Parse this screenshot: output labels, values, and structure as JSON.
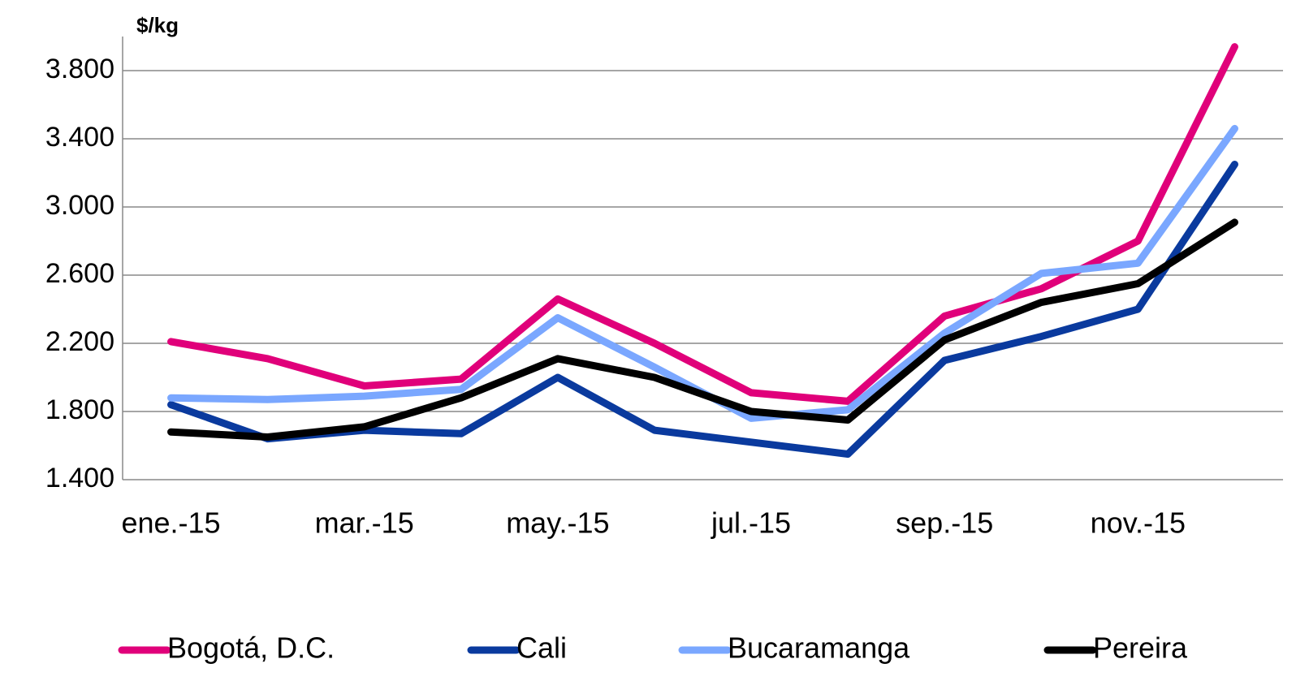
{
  "chart_data": {
    "type": "line",
    "y_label": "$/kg",
    "categories": [
      "ene.-15",
      null,
      "mar.-15",
      null,
      "may.-15",
      null,
      "jul.-15",
      null,
      "sep.-15",
      null,
      "nov.-15",
      null
    ],
    "series": [
      {
        "name": "Bogotá, D.C.",
        "color": "#e0007a",
        "values": [
          2210,
          2110,
          1950,
          1990,
          2460,
          2200,
          1910,
          1860,
          2360,
          2520,
          2800,
          3940
        ]
      },
      {
        "name": "Cali",
        "color": "#0a3a9e",
        "values": [
          1840,
          1640,
          1690,
          1670,
          2000,
          1690,
          1620,
          1550,
          2100,
          2240,
          2400,
          3250
        ]
      },
      {
        "name": "Bucaramanga",
        "color": "#7aa7ff",
        "values": [
          1880,
          1870,
          1890,
          1930,
          2350,
          2060,
          1760,
          1810,
          2260,
          2610,
          2670,
          3460
        ]
      },
      {
        "name": "Pereira",
        "color": "#000000",
        "values": [
          1680,
          1650,
          1710,
          1880,
          2110,
          2000,
          1800,
          1750,
          2220,
          2440,
          2550,
          2910
        ]
      }
    ],
    "ylim": [
      1400,
      4000
    ],
    "yticks": [
      {
        "value": 1400,
        "label": "1.400"
      },
      {
        "value": 1800,
        "label": "1.800"
      },
      {
        "value": 2200,
        "label": "2.200"
      },
      {
        "value": 2600,
        "label": "2.600"
      },
      {
        "value": 3000,
        "label": "3.000"
      },
      {
        "value": 3400,
        "label": "3.400"
      },
      {
        "value": 3800,
        "label": "3.800"
      }
    ],
    "grid": true,
    "legend": "bottom"
  }
}
